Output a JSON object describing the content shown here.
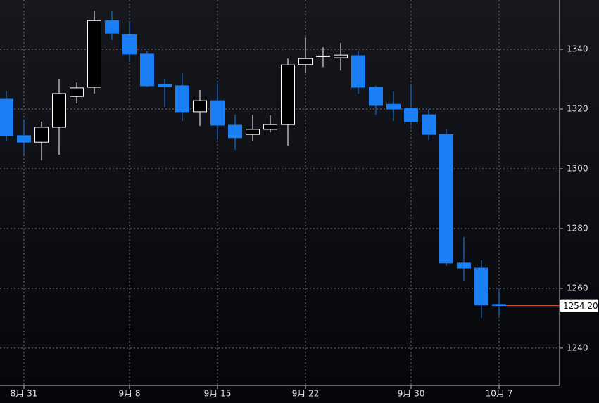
{
  "chart_data": {
    "type": "candlestick",
    "categories": [
      null,
      "8月 31",
      null,
      null,
      null,
      null,
      null,
      "9月 8",
      null,
      null,
      null,
      null,
      "9月 15",
      null,
      null,
      null,
      null,
      "9月 22",
      null,
      null,
      null,
      null,
      null,
      "9月 30",
      null,
      null,
      null,
      null,
      "10月 7"
    ],
    "open": [
      1323.3,
      1311.1,
      1308.9,
      1313.9,
      1324.2,
      1327.3,
      1349.6,
      1344.9,
      1338.4,
      1328.2,
      1327.8,
      1319.1,
      1322.8,
      1314.6,
      1311.5,
      1313.2,
      1314.8,
      1334.9,
      1337.6,
      1337.2,
      1337.9,
      1327.3,
      1321.6,
      1320.2,
      1318.1,
      1311.5,
      1268.5,
      1266.8,
      1254.6
    ],
    "high": [
      1325.9,
      1316.5,
      1315.8,
      1330.1,
      1328.9,
      1352.9,
      1352.7,
      1349.4,
      1339.5,
      1330.1,
      1332.0,
      1326.4,
      1328.7,
      1318.1,
      1318.1,
      1317.9,
      1336.9,
      1344.0,
      1340.7,
      1342.1,
      1339.5,
      1327.8,
      1325.9,
      1328.2,
      1320.0,
      1313.2,
      1277.2,
      1269.4,
      1260.0
    ],
    "low": [
      1309.4,
      1304.7,
      1302.8,
      1304.7,
      1321.9,
      1325.2,
      1343.1,
      1335.8,
      1327.5,
      1320.7,
      1316.0,
      1314.4,
      1309.6,
      1306.4,
      1309.2,
      1312.2,
      1307.8,
      1332.0,
      1334.1,
      1332.9,
      1325.2,
      1318.1,
      1316.0,
      1314.4,
      1309.6,
      1267.5,
      1262.4,
      1250.1,
      1250.6
    ],
    "close": [
      1311.1,
      1308.9,
      1313.9,
      1325.2,
      1327.1,
      1349.6,
      1345.4,
      1338.4,
      1327.8,
      1327.5,
      1319.1,
      1322.8,
      1314.6,
      1310.4,
      1313.2,
      1314.8,
      1334.8,
      1336.9,
      1337.8,
      1338.1,
      1327.3,
      1321.2,
      1320.0,
      1315.8,
      1311.5,
      1268.5,
      1266.8,
      1254.4,
      1254.2
    ],
    "up_color": "#ffffff",
    "down_color": "#1a7ef5",
    "ylim": [
      1227.5,
      1356.5
    ],
    "yticks": [
      1240,
      1260,
      1280,
      1300,
      1320,
      1340
    ],
    "grid": true,
    "last_price": {
      "value": 1254.2,
      "label": "1254.20",
      "color": "#e2643c"
    }
  }
}
